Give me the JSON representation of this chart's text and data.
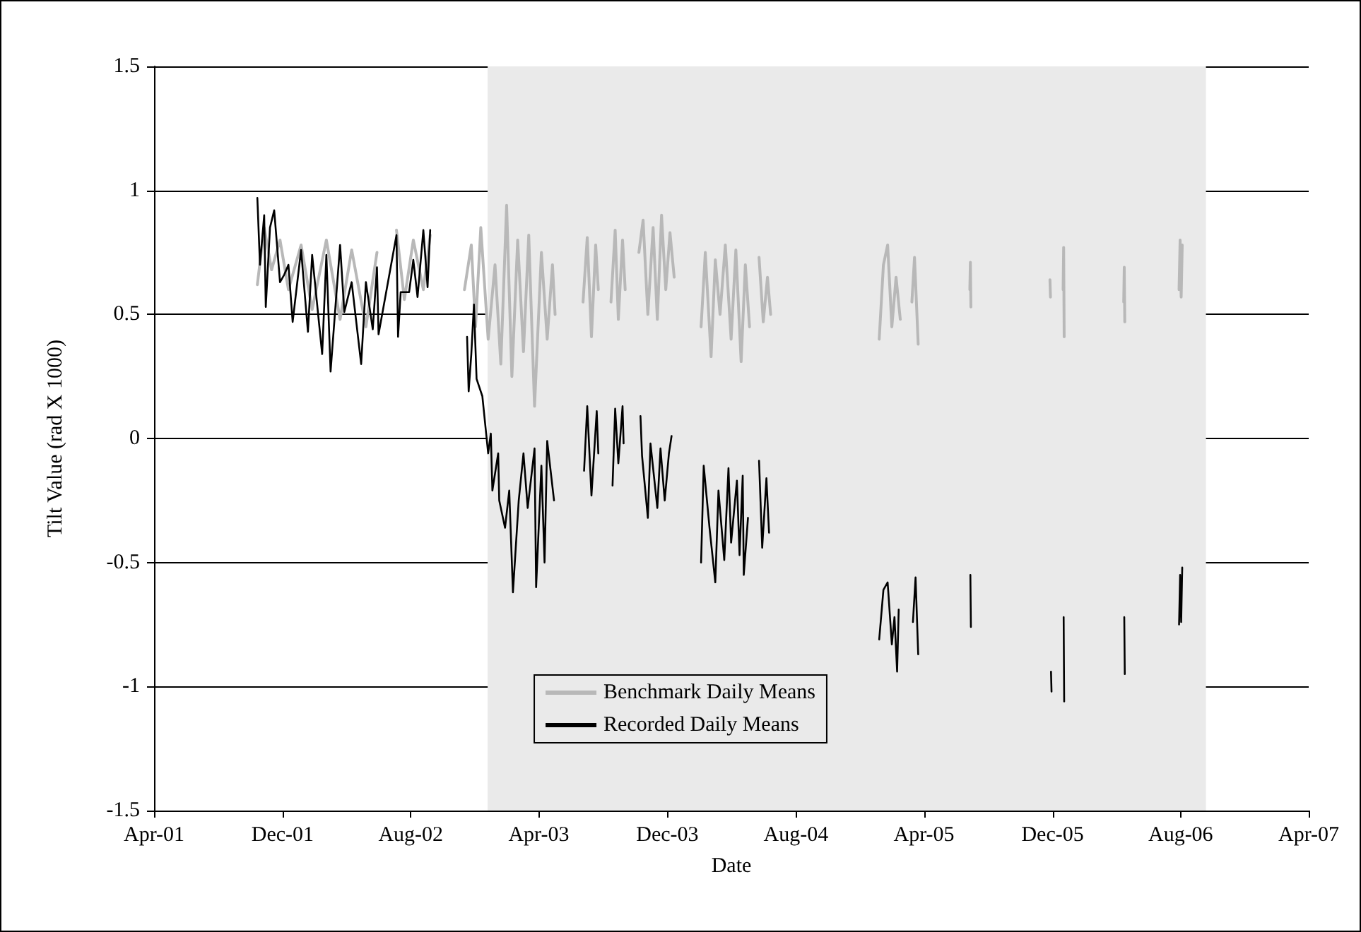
{
  "chart_data": {
    "type": "line",
    "xlabel": "Date",
    "ylabel": "Tilt Value (rad X 1000)",
    "xlim": [
      "2001-04-01",
      "2007-04-01"
    ],
    "xticks": [
      {
        "value": "2001-04-01",
        "label": "Apr-01"
      },
      {
        "value": "2001-12-01",
        "label": "Dec-01"
      },
      {
        "value": "2002-08-01",
        "label": "Aug-02"
      },
      {
        "value": "2003-04-01",
        "label": "Apr-03"
      },
      {
        "value": "2003-12-01",
        "label": "Dec-03"
      },
      {
        "value": "2004-08-01",
        "label": "Aug-04"
      },
      {
        "value": "2005-04-01",
        "label": "Apr-05"
      },
      {
        "value": "2005-12-01",
        "label": "Dec-05"
      },
      {
        "value": "2006-08-01",
        "label": "Aug-06"
      },
      {
        "value": "2007-04-01",
        "label": "Apr-07"
      }
    ],
    "ylim": [
      -1.5,
      1.5
    ],
    "yticks": [
      -1.5,
      -1,
      -0.5,
      0,
      0.5,
      1,
      1.5
    ],
    "grid": "y",
    "legend": "bottom",
    "marker": "none",
    "line_style": "solid",
    "bands": [
      {
        "axis": "x",
        "from": "2002-12-25",
        "to": "2006-09-18",
        "color": "#eaeaea"
      }
    ],
    "series": [
      {
        "name": "Benchmark Daily Means",
        "color": "#b8b8b8",
        "x": [
          "2001-10-14",
          "2001-10-27",
          "2001-11-10",
          "2001-11-26",
          "2001-12-12",
          "2002-01-05",
          "2002-01-26",
          "2002-02-22",
          "2002-03-20",
          "2002-04-11",
          "2002-05-08",
          "2002-05-29",
          "2002-06-20",
          "2002-07-05",
          "2002-07-20",
          "2002-08-06",
          "2002-08-25",
          "2002-09-07",
          "2002-10-15",
          "2002-11-11",
          "2002-11-24",
          "2002-12-02",
          "2002-12-12",
          "2002-12-26",
          "2003-01-08",
          "2003-01-19",
          "2003-01-30",
          "2003-02-09",
          "2003-02-20",
          "2003-03-03",
          "2003-03-13",
          "2003-03-24",
          "2003-04-06",
          "2003-04-17",
          "2003-04-27",
          "2003-05-02",
          "2003-05-20",
          "2003-06-24",
          "2003-07-02",
          "2003-07-10",
          "2003-07-18",
          "2003-07-23",
          "2003-08-01",
          "2003-08-16",
          "2003-08-24",
          "2003-08-30",
          "2003-09-07",
          "2003-09-12",
          "2003-09-25",
          "2003-10-08",
          "2003-10-16",
          "2003-10-25",
          "2003-11-04",
          "2003-11-12",
          "2003-11-20",
          "2003-11-28",
          "2003-12-06",
          "2003-12-14",
          "2004-01-10",
          "2004-02-03",
          "2004-02-11",
          "2004-02-22",
          "2004-03-01",
          "2004-03-10",
          "2004-03-20",
          "2004-03-31",
          "2004-04-09",
          "2004-04-19",
          "2004-04-27",
          "2004-05-05",
          "2004-05-14",
          "2004-05-23",
          "2004-05-31",
          "2004-06-08",
          "2004-06-14",
          "2004-09-01",
          "2005-01-06",
          "2005-01-14",
          "2005-01-22",
          "2005-01-30",
          "2005-02-07",
          "2005-02-15",
          "2005-02-28",
          "2005-03-09",
          "2005-03-14",
          "2005-03-21",
          "2005-04-20",
          "2005-06-27",
          "2005-06-28",
          "2005-06-29",
          "2005-09-01",
          "2005-11-26",
          "2005-11-27",
          "2005-12-10",
          "2005-12-21",
          "2005-12-22",
          "2005-12-23",
          "2006-02-01",
          "2006-04-15",
          "2006-04-16",
          "2006-04-17",
          "2006-06-01",
          "2006-07-29",
          "2006-07-31",
          "2006-08-02",
          "2006-08-04"
        ],
        "values": [
          0.62,
          0.85,
          0.68,
          0.8,
          0.6,
          0.78,
          0.52,
          0.8,
          0.48,
          0.76,
          0.45,
          0.75,
          null,
          0.84,
          0.56,
          0.8,
          0.6,
          0.82,
          null,
          0.6,
          0.78,
          0.45,
          0.85,
          0.4,
          0.7,
          0.3,
          0.94,
          0.25,
          0.8,
          0.35,
          0.82,
          0.13,
          0.75,
          0.4,
          0.7,
          0.5,
          null,
          0.55,
          0.81,
          0.41,
          0.78,
          0.6,
          null,
          0.55,
          0.84,
          0.48,
          0.8,
          0.6,
          null,
          0.75,
          0.88,
          0.5,
          0.85,
          0.48,
          0.9,
          0.6,
          0.83,
          0.65,
          null,
          0.45,
          0.75,
          0.33,
          0.72,
          0.5,
          0.78,
          0.4,
          0.76,
          0.31,
          0.7,
          0.45,
          null,
          0.73,
          0.47,
          0.65,
          0.5,
          null,
          0.4,
          0.7,
          0.78,
          0.45,
          0.65,
          0.48,
          null,
          0.55,
          0.73,
          0.38,
          null,
          0.6,
          0.71,
          0.53,
          null,
          0.64,
          0.57,
          null,
          0.6,
          0.77,
          0.41,
          null,
          0.55,
          0.69,
          0.47,
          null,
          0.6,
          0.8,
          0.57,
          0.78
        ]
      },
      {
        "name": "Recorded Daily Means",
        "color": "#000000",
        "x": [
          "2001-10-14",
          "2001-10-19",
          "2001-10-27",
          "2001-10-30",
          "2001-11-07",
          "2001-11-15",
          "2001-11-26",
          "2001-12-04",
          "2001-12-12",
          "2001-12-20",
          "2002-01-05",
          "2002-01-18",
          "2002-01-26",
          "2002-02-14",
          "2002-02-22",
          "2002-03-02",
          "2002-03-20",
          "2002-03-28",
          "2002-04-11",
          "2002-04-29",
          "2002-05-08",
          "2002-05-21",
          "2002-05-29",
          "2002-06-01",
          "2002-07-05",
          "2002-07-08",
          "2002-07-13",
          "2002-07-29",
          "2002-08-06",
          "2002-08-14",
          "2002-08-25",
          "2002-09-02",
          "2002-09-07",
          "2002-10-15",
          "2002-11-16",
          "2002-11-19",
          "2002-11-24",
          "2002-11-29",
          "2002-12-04",
          "2002-12-15",
          "2002-12-26",
          "2002-12-31",
          "2003-01-03",
          "2003-01-14",
          "2003-01-16",
          "2003-01-27",
          "2003-02-04",
          "2003-02-11",
          "2003-02-22",
          "2003-03-03",
          "2003-03-11",
          "2003-03-24",
          "2003-03-27",
          "2003-04-06",
          "2003-04-12",
          "2003-04-17",
          "2003-04-30",
          "2003-05-15",
          "2003-06-26",
          "2003-07-02",
          "2003-07-10",
          "2003-07-20",
          "2003-07-23",
          "2003-07-30",
          "2003-08-19",
          "2003-08-24",
          "2003-08-30",
          "2003-09-07",
          "2003-09-09",
          "2003-09-20",
          "2003-10-11",
          "2003-10-14",
          "2003-10-25",
          "2003-10-30",
          "2003-11-12",
          "2003-11-18",
          "2003-11-26",
          "2003-12-04",
          "2003-12-09",
          "2004-01-01",
          "2004-02-03",
          "2004-02-08",
          "2004-02-19",
          "2004-03-01",
          "2004-03-07",
          "2004-03-18",
          "2004-03-26",
          "2004-03-31",
          "2004-04-11",
          "2004-04-16",
          "2004-04-22",
          "2004-04-24",
          "2004-05-02",
          "2004-05-10",
          "2004-05-23",
          "2004-05-29",
          "2004-06-06",
          "2004-06-11",
          "2004-09-01",
          "2005-01-06",
          "2005-01-14",
          "2005-01-22",
          "2005-01-30",
          "2005-02-04",
          "2005-02-09",
          "2005-02-12",
          "2005-02-25",
          "2005-03-11",
          "2005-03-16",
          "2005-03-21",
          "2005-04-20",
          "2005-06-28",
          "2005-06-29",
          "2005-09-01",
          "2005-11-28",
          "2005-11-29",
          "2005-12-10",
          "2005-12-22",
          "2005-12-23",
          "2006-02-01",
          "2006-04-16",
          "2006-04-17",
          "2006-06-01",
          "2006-07-29",
          "2006-07-31",
          "2006-08-02",
          "2006-08-04"
        ],
        "values": [
          0.97,
          0.7,
          0.9,
          0.53,
          0.85,
          0.92,
          0.63,
          0.66,
          0.7,
          0.47,
          0.76,
          0.43,
          0.74,
          0.34,
          0.74,
          0.27,
          0.78,
          0.51,
          0.63,
          0.3,
          0.63,
          0.44,
          0.69,
          0.42,
          0.82,
          0.41,
          0.59,
          0.59,
          0.72,
          0.57,
          0.84,
          0.61,
          0.84,
          null,
          0.41,
          0.19,
          0.34,
          0.54,
          0.24,
          0.17,
          -0.06,
          0.02,
          -0.21,
          -0.06,
          -0.25,
          -0.36,
          -0.21,
          -0.62,
          -0.25,
          -0.06,
          -0.28,
          -0.04,
          -0.6,
          -0.11,
          -0.5,
          -0.01,
          -0.25,
          null,
          -0.13,
          0.13,
          -0.23,
          0.11,
          -0.06,
          null,
          -0.19,
          0.12,
          -0.1,
          0.13,
          -0.02,
          null,
          0.09,
          -0.07,
          -0.32,
          -0.02,
          -0.28,
          -0.04,
          -0.25,
          -0.06,
          0.01,
          null,
          -0.5,
          -0.11,
          -0.36,
          -0.58,
          -0.21,
          -0.49,
          -0.12,
          -0.42,
          -0.17,
          -0.47,
          -0.15,
          -0.55,
          -0.32,
          null,
          -0.09,
          -0.44,
          -0.16,
          -0.38,
          null,
          -0.81,
          -0.61,
          -0.58,
          -0.83,
          -0.72,
          -0.94,
          -0.69,
          null,
          -0.74,
          -0.56,
          -0.87,
          null,
          -0.55,
          -0.76,
          null,
          -0.94,
          -1.02,
          null,
          -0.72,
          -1.06,
          null,
          -0.72,
          -0.95,
          null,
          -0.75,
          -0.55,
          -0.74,
          -0.52
        ]
      }
    ]
  }
}
